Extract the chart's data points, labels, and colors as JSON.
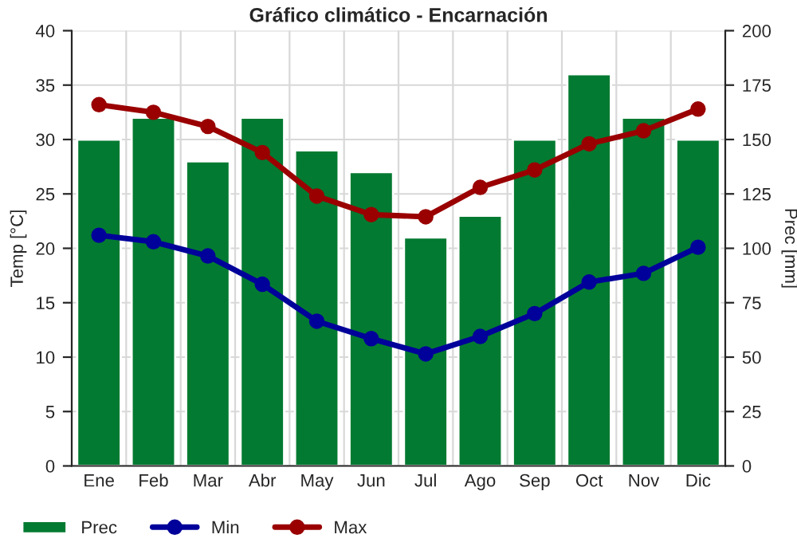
{
  "chart_data": {
    "type": "bar",
    "title": "Gráfico climático - Encarnación",
    "ylabel": "Temp [°C]",
    "y2label": "Prec [mm]",
    "categories": [
      "Ene",
      "Feb",
      "Mar",
      "Abr",
      "May",
      "Jun",
      "Jul",
      "Ago",
      "Sep",
      "Oct",
      "Nov",
      "Dic"
    ],
    "series": [
      {
        "name": "Prec",
        "axis": "y2",
        "color": "#037a31",
        "values": [
          150,
          160,
          140,
          160,
          145,
          135,
          105,
          115,
          150,
          180,
          160,
          150
        ]
      },
      {
        "name": "Min",
        "type": "line",
        "axis": "y",
        "color": "#00009a",
        "values": [
          21.2,
          20.6,
          19.3,
          16.7,
          13.3,
          11.7,
          10.3,
          11.9,
          14.0,
          16.9,
          17.7,
          20.1
        ]
      },
      {
        "name": "Max",
        "type": "line",
        "axis": "y",
        "color": "#9a0000",
        "values": [
          33.2,
          32.5,
          31.2,
          28.8,
          24.8,
          23.1,
          22.9,
          25.6,
          27.2,
          29.6,
          30.8,
          32.8
        ]
      }
    ],
    "ylim": [
      0,
      40
    ],
    "yticks": [
      0,
      5,
      10,
      15,
      20,
      25,
      30,
      35,
      40
    ],
    "y2lim": [
      0,
      200
    ],
    "y2ticks": [
      0,
      25,
      50,
      75,
      100,
      125,
      150,
      175,
      200
    ],
    "grid": true,
    "legend": "bottom",
    "marker": "circle",
    "line_style": "solid"
  }
}
